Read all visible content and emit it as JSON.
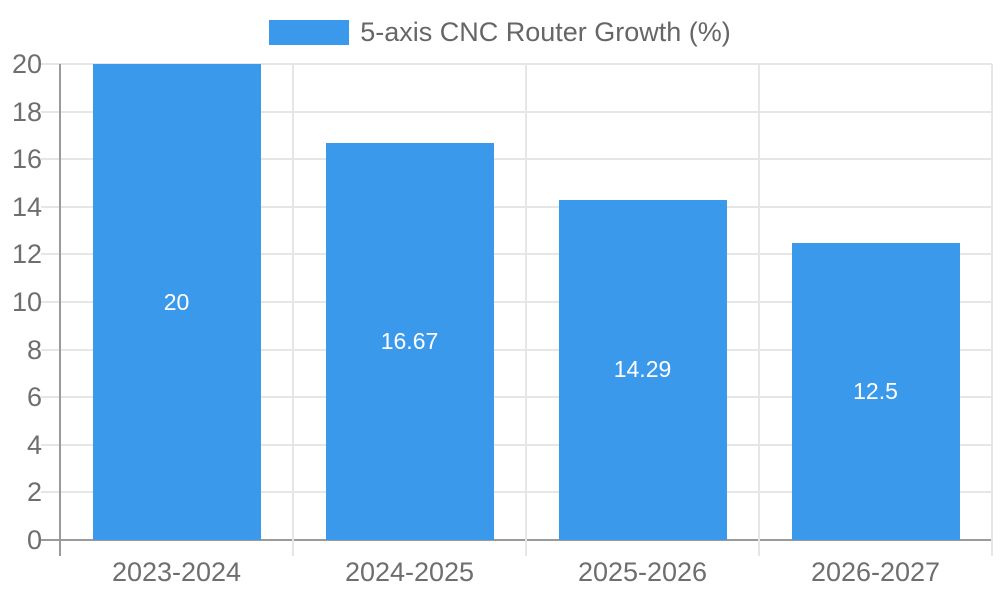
{
  "legend": {
    "label": "5-axis CNC Router Growth (%)",
    "swatch_color": "#3b99ec"
  },
  "chart_data": {
    "type": "bar",
    "title": "",
    "categories": [
      "2023-2024",
      "2024-2025",
      "2025-2026",
      "2026-2027"
    ],
    "series": [
      {
        "name": "5-axis CNC Router Growth (%)",
        "values": [
          20,
          16.67,
          14.29,
          12.5
        ]
      }
    ],
    "value_labels": [
      "20",
      "16.67",
      "14.29",
      "12.5"
    ],
    "xlabel": "",
    "ylabel": "",
    "ylim": [
      0,
      20
    ],
    "ytick_step": 2,
    "grid": true,
    "legend_position": "top",
    "bar_color": "#3b99ec",
    "value_label_color": "#ffffff"
  },
  "colors": {
    "bar": "#3b99ec",
    "gridline": "#e6e6e6",
    "axis": "#9a9a9a",
    "tick_text": "#6e6e6e",
    "legend_text": "#666666",
    "background": "#ffffff"
  }
}
